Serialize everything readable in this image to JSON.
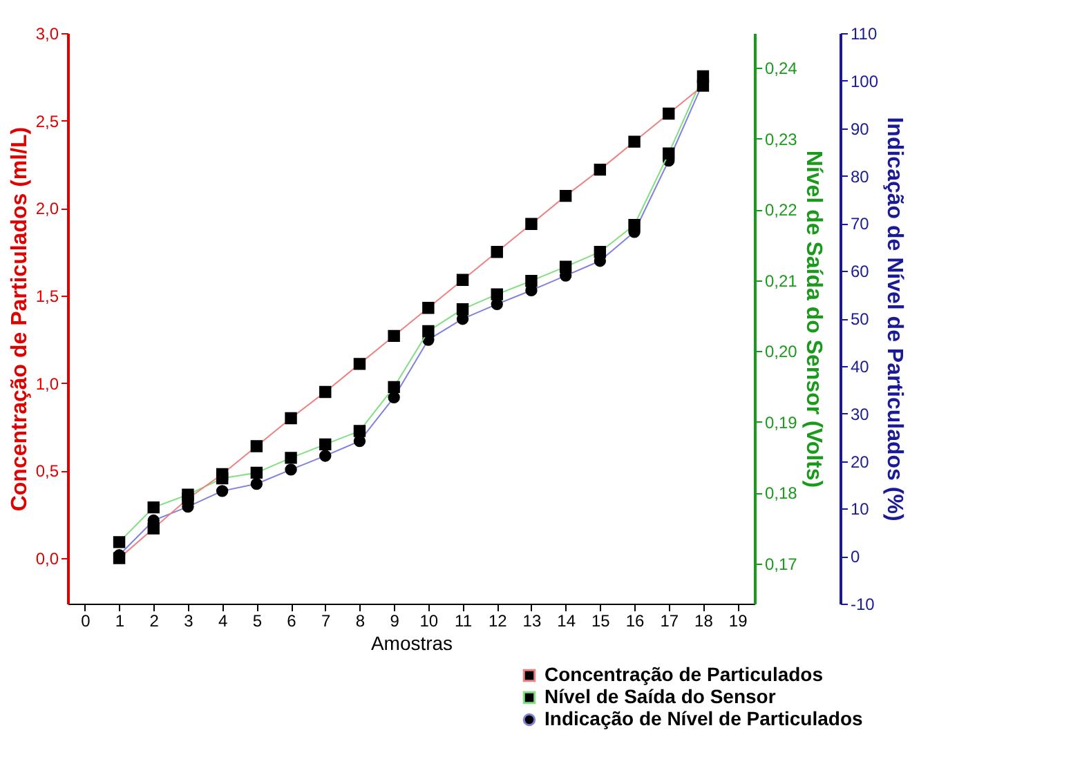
{
  "chart_data": {
    "type": "line",
    "xlabel": "Amostras",
    "ylabel": "Concentração de Particulados (ml/L)",
    "y2label": "Nível de Saída do Sensor (Volts)",
    "y3label": "Indicação de Nível de Particulados (%)",
    "x": [
      1,
      2,
      3,
      4,
      5,
      6,
      7,
      8,
      9,
      10,
      11,
      12,
      13,
      14,
      15,
      16,
      17,
      18
    ],
    "xlim": [
      -0.5,
      19.5
    ],
    "xticks": [
      0,
      1,
      2,
      3,
      4,
      5,
      6,
      7,
      8,
      9,
      10,
      11,
      12,
      13,
      14,
      15,
      16,
      17,
      18,
      19
    ],
    "ylim": [
      -0.26,
      3.0
    ],
    "yticks": [
      {
        "value": 0,
        "label": "0,0"
      },
      {
        "value": 0.5,
        "label": "0,5"
      },
      {
        "value": 1,
        "label": "1,0"
      },
      {
        "value": 1.5,
        "label": "1,5"
      },
      {
        "value": 2,
        "label": "2,0"
      },
      {
        "value": 2.5,
        "label": "2,5"
      },
      {
        "value": 3,
        "label": "3,0"
      }
    ],
    "y2lim": [
      0.1643,
      0.2449
    ],
    "y2ticks": [
      {
        "value": 0.17,
        "label": "0,17"
      },
      {
        "value": 0.18,
        "label": "0,18"
      },
      {
        "value": 0.19,
        "label": "0,19"
      },
      {
        "value": 0.2,
        "label": "0,20"
      },
      {
        "value": 0.21,
        "label": "0,21"
      },
      {
        "value": 0.22,
        "label": "0,22"
      },
      {
        "value": 0.23,
        "label": "0,23"
      },
      {
        "value": 0.24,
        "label": "0,24"
      }
    ],
    "y3lim": [
      -10,
      110
    ],
    "y3ticks": [
      -10,
      0,
      10,
      20,
      30,
      40,
      50,
      60,
      70,
      80,
      90,
      100,
      110
    ],
    "grid": false,
    "legend": "bottom right",
    "line_style": "solid",
    "series": [
      {
        "name": "Concentração de Particulados",
        "color": "#f08080",
        "marker": "square",
        "axis": "y",
        "values": [
          0.0,
          0.17,
          0.34,
          0.48,
          0.64,
          0.8,
          0.95,
          1.11,
          1.27,
          1.43,
          1.59,
          1.75,
          1.91,
          2.07,
          2.22,
          2.38,
          2.54,
          2.7
        ]
      },
      {
        "name": "Nível de Saída do Sensor",
        "color": "#80e080",
        "marker": "square",
        "axis": "y2",
        "values": [
          0.173,
          0.1779,
          0.1797,
          0.182,
          0.1828,
          0.1849,
          0.1868,
          0.1887,
          0.1949,
          0.2028,
          0.2059,
          0.208,
          0.2099,
          0.2119,
          0.214,
          0.2178,
          0.2279,
          0.2388
        ]
      },
      {
        "name": "Indicação de Nível de Particulados",
        "color": "#8080e0",
        "marker": "circle",
        "axis": "y3",
        "values": [
          0.2,
          7.5,
          10.4,
          13.7,
          15.2,
          18.2,
          21.1,
          24.2,
          33.4,
          45.5,
          49.9,
          53.0,
          55.9,
          59.0,
          62.1,
          68.2,
          83.2,
          99.6
        ]
      }
    ]
  }
}
